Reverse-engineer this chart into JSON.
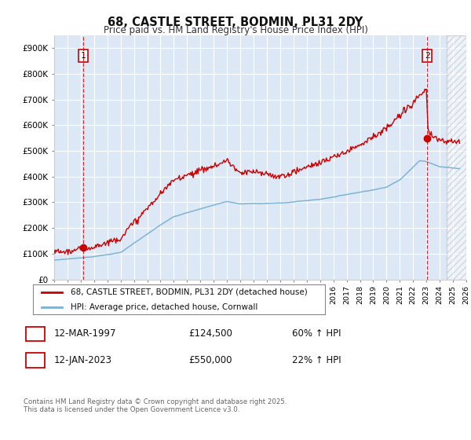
{
  "title": "68, CASTLE STREET, BODMIN, PL31 2DY",
  "subtitle": "Price paid vs. HM Land Registry's House Price Index (HPI)",
  "legend_line1": "68, CASTLE STREET, BODMIN, PL31 2DY (detached house)",
  "legend_line2": "HPI: Average price, detached house, Cornwall",
  "transaction1_date": "12-MAR-1997",
  "transaction1_price": "£124,500",
  "transaction1_hpi": "60% ↑ HPI",
  "transaction2_date": "12-JAN-2023",
  "transaction2_price": "£550,000",
  "transaction2_hpi": "22% ↑ HPI",
  "footnote": "Contains HM Land Registry data © Crown copyright and database right 2025.\nThis data is licensed under the Open Government Licence v3.0.",
  "plot_background": "#dce8f5",
  "red_line_color": "#cc0000",
  "blue_line_color": "#7ab0d4",
  "marker1_x": 1997.2,
  "marker1_y": 124500,
  "marker2_x": 2023.05,
  "marker2_y": 550000,
  "ylim": [
    0,
    950000
  ],
  "xlim_start": 1995,
  "xlim_end": 2026
}
